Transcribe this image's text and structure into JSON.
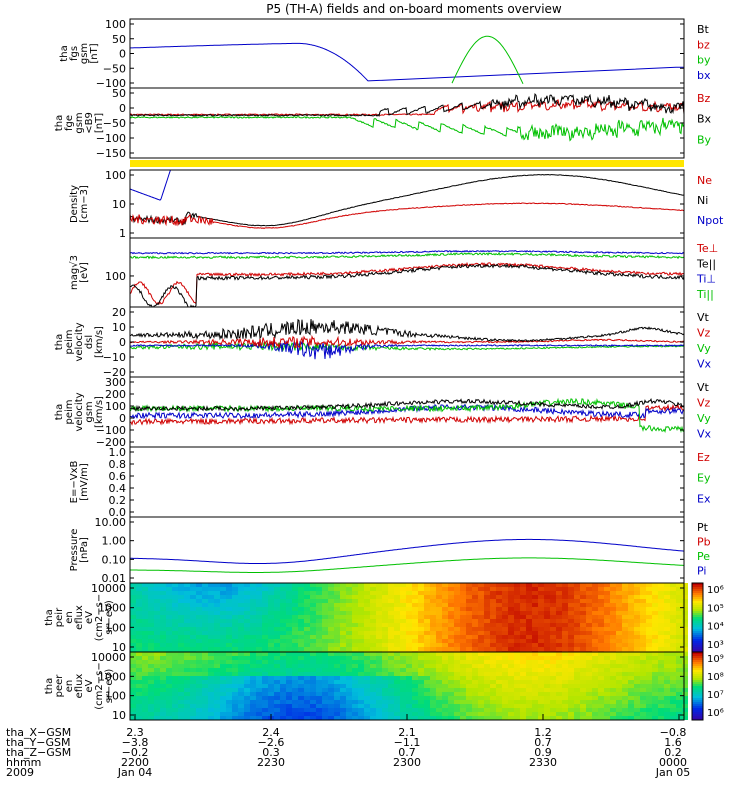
{
  "title": "P5 (TH-A) fields and on-board moments overview",
  "chart_data": [
    {
      "id": "fgs",
      "type": "line",
      "ylabel": [
        "tha",
        "fgs",
        "gsm",
        "[nT]"
      ],
      "yticks": [
        "100",
        "50",
        "0",
        "−50",
        "−100"
      ],
      "ylim": [
        -100,
        100
      ],
      "legend": [
        "Bt",
        "bz",
        "by",
        "bx"
      ],
      "colors": [
        "#000000",
        "#d00000",
        "#00c000",
        "#0000c8"
      ]
    },
    {
      "id": "fge",
      "type": "line",
      "ylabel": [
        "tha",
        "fge",
        "gsm",
        "<B9",
        "[nT]"
      ],
      "yticks": [
        "50",
        "0",
        "−50",
        "−100",
        "−150"
      ],
      "ylim": [
        -175,
        100
      ],
      "legend": [
        "Bz",
        "Bx",
        "By"
      ],
      "colors": [
        "#d00000",
        "#000000",
        "#00c000"
      ]
    },
    {
      "id": "density",
      "type": "line",
      "log": true,
      "ylabel": [
        "Density",
        "[cm−3]"
      ],
      "yticks": [
        "100",
        "10",
        "1"
      ],
      "ylim": [
        0.3,
        200
      ],
      "legend": [
        "Ne",
        "Ni",
        "Npot"
      ],
      "colors": [
        "#d00000",
        "#000000",
        "#0000c8"
      ]
    },
    {
      "id": "temp",
      "type": "line",
      "log": true,
      "ylabel": [
        "mag√3",
        "[eV]"
      ],
      "yticks": [
        "100"
      ],
      "ylim": [
        25,
        800
      ],
      "legend": [
        "Te⊥",
        "Te||",
        "Ti⊥",
        "Ti||"
      ],
      "colors": [
        "#d00000",
        "#000000",
        "#0000c8",
        "#00c000"
      ]
    },
    {
      "id": "velocity_dsl",
      "type": "line",
      "ylabel": [
        "tha",
        "peim",
        "velocity",
        "dsl",
        "[km/s]"
      ],
      "yticks": [
        "20",
        "10",
        "0",
        "−10",
        "−20"
      ],
      "ylim": [
        -22,
        22
      ],
      "legend": [
        "Vt",
        "Vz",
        "Vy",
        "Vx"
      ],
      "colors": [
        "#000000",
        "#d00000",
        "#00c000",
        "#0000c8"
      ]
    },
    {
      "id": "velocity_gsm",
      "type": "line",
      "ylabel": [
        "tha",
        "peim",
        "velocity",
        "gsm",
        "[km/s]"
      ],
      "yticks": [
        "300",
        "200",
        "100",
        "0",
        "−100",
        "−200"
      ],
      "ylim": [
        -220,
        300
      ],
      "legend": [
        "Vt",
        "Vz",
        "Vy",
        "Vx"
      ],
      "colors": [
        "#000000",
        "#d00000",
        "#00c000",
        "#0000c8"
      ]
    },
    {
      "id": "efield",
      "type": "line",
      "ylabel": [
        "E=−VxB",
        "[mV/m]"
      ],
      "yticks": [
        "1.0",
        "0.8",
        "0.6",
        "0.4",
        "0.2",
        "0.0"
      ],
      "ylim": [
        0,
        1
      ],
      "legend": [
        "Ez",
        "Ey",
        "Ex"
      ],
      "colors": [
        "#d00000",
        "#00c000",
        "#0000c8"
      ]
    },
    {
      "id": "pressure",
      "type": "line",
      "log": true,
      "ylabel": [
        "Pressure",
        "[nPa]"
      ],
      "yticks": [
        "10.00",
        "1.00",
        "0.10",
        "0.01"
      ],
      "ylim": [
        0.008,
        25
      ],
      "legend": [
        "Pt",
        "Pb",
        "Pe",
        "Pi"
      ],
      "colors": [
        "#000000",
        "#d00000",
        "#00c000",
        "#0000c8"
      ]
    },
    {
      "id": "peir_spec",
      "type": "heatmap",
      "ylabel": [
        "tha",
        "peir",
        "en",
        "eflux",
        "eV",
        "(cm2−s−",
        "sr−eV)"
      ],
      "yticks": [
        "10000",
        "1000",
        "100",
        "10"
      ],
      "cbar": [
        "10⁶",
        "10⁵",
        "10⁴",
        "10³"
      ]
    },
    {
      "id": "peer_spec",
      "type": "heatmap",
      "ylabel": [
        "tha",
        "peer",
        "en",
        "eflux",
        "eV",
        "(cm2−s−",
        "sr−eV)"
      ],
      "yticks": [
        "10000",
        "1000",
        "100",
        "10"
      ],
      "cbar": [
        "10⁹",
        "10⁸",
        "10⁷",
        "10⁶"
      ]
    }
  ],
  "xaxis": {
    "rows": [
      {
        "label": "tha_X−GSM",
        "values": [
          "2.3",
          "2.4",
          "2.1",
          "1.2",
          "−0.8"
        ]
      },
      {
        "label": "tha_Y−GSM",
        "values": [
          "−3.8",
          "−2.6",
          "−1.1",
          "0.7",
          "1.6"
        ]
      },
      {
        "label": "tha_Z−GSM",
        "values": [
          "−0.2",
          "0.3",
          "0.7",
          "0.9",
          "0.2"
        ]
      },
      {
        "label": "hhmm",
        "values": [
          "2200",
          "2230",
          "2300",
          "2330",
          "0000"
        ]
      },
      {
        "label": "2009",
        "values": [
          "Jan 04",
          "",
          "",
          "",
          "Jan 05"
        ]
      }
    ]
  }
}
